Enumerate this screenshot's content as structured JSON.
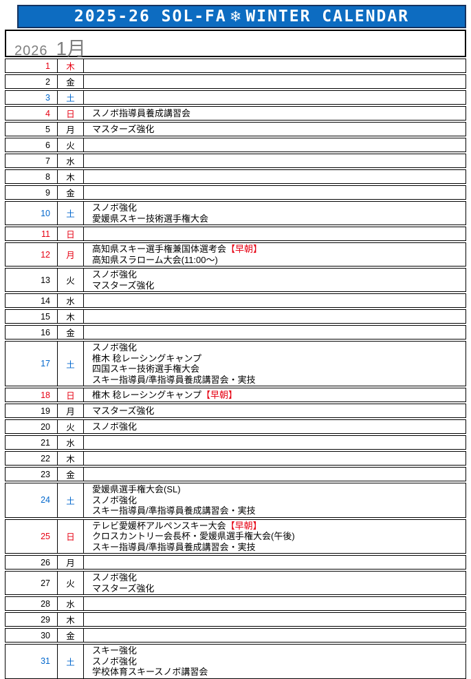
{
  "header": {
    "title_left": "2025-26 SOL-FA",
    "snowflake": "❄",
    "title_right": "WINTER CALENDAR"
  },
  "month": {
    "year": "2026",
    "label": "1月"
  },
  "colors": {
    "header_bg": "#0d6cc1",
    "header_border": "#14325f",
    "red": "#e60012",
    "blue": "#0066cc",
    "gray": "#7f7f7f"
  },
  "calendar": {
    "highlight_token": "【早朝】",
    "days": [
      {
        "date": 1,
        "dow": "木",
        "color": "red",
        "events": []
      },
      {
        "date": 2,
        "dow": "金",
        "color": "black",
        "events": []
      },
      {
        "date": 3,
        "dow": "土",
        "color": "blue",
        "events": []
      },
      {
        "date": 4,
        "dow": "日",
        "color": "red",
        "events": [
          "スノボ指導員養成講習会"
        ]
      },
      {
        "date": 5,
        "dow": "月",
        "color": "black",
        "events": [
          "マスターズ強化"
        ]
      },
      {
        "date": 6,
        "dow": "火",
        "color": "black",
        "events": []
      },
      {
        "date": 7,
        "dow": "水",
        "color": "black",
        "events": []
      },
      {
        "date": 8,
        "dow": "木",
        "color": "black",
        "events": []
      },
      {
        "date": 9,
        "dow": "金",
        "color": "black",
        "events": []
      },
      {
        "date": 10,
        "dow": "土",
        "color": "blue",
        "events": [
          "スノボ強化",
          "愛媛県スキー技術選手権大会"
        ]
      },
      {
        "date": 11,
        "dow": "日",
        "color": "red",
        "events": []
      },
      {
        "date": 12,
        "dow": "月",
        "color": "red",
        "events": [
          "高知県スキー選手権兼国体選考会【早朝】",
          "高知県スラローム大会(11:00〜)"
        ]
      },
      {
        "date": 13,
        "dow": "火",
        "color": "black",
        "events": [
          "スノボ強化",
          "マスターズ強化"
        ]
      },
      {
        "date": 14,
        "dow": "水",
        "color": "black",
        "events": []
      },
      {
        "date": 15,
        "dow": "木",
        "color": "black",
        "events": []
      },
      {
        "date": 16,
        "dow": "金",
        "color": "black",
        "events": []
      },
      {
        "date": 17,
        "dow": "土",
        "color": "blue",
        "events": [
          "スノボ強化",
          "椎木 稔レーシングキャンプ",
          "四国スキー技術選手権大会",
          "スキー指導員/準指導員養成講習会・実技"
        ]
      },
      {
        "date": 18,
        "dow": "日",
        "color": "red",
        "events": [
          "椎木 稔レーシングキャンプ【早朝】"
        ]
      },
      {
        "date": 19,
        "dow": "月",
        "color": "black",
        "events": [
          "マスターズ強化"
        ]
      },
      {
        "date": 20,
        "dow": "火",
        "color": "black",
        "events": [
          "スノボ強化"
        ]
      },
      {
        "date": 21,
        "dow": "水",
        "color": "black",
        "events": []
      },
      {
        "date": 22,
        "dow": "木",
        "color": "black",
        "events": []
      },
      {
        "date": 23,
        "dow": "金",
        "color": "black",
        "events": []
      },
      {
        "date": 24,
        "dow": "土",
        "color": "blue",
        "events": [
          "愛媛県選手権大会(SL)",
          "スノボ強化",
          "スキー指導員/準指導員養成講習会・実技"
        ]
      },
      {
        "date": 25,
        "dow": "日",
        "color": "red",
        "events": [
          "テレビ愛媛杯アルペンスキー大会【早朝】",
          "クロスカントリー会長杯・愛媛県選手権大会(午後)",
          "スキー指導員/準指導員養成講習会・実技"
        ]
      },
      {
        "date": 26,
        "dow": "月",
        "color": "black",
        "events": []
      },
      {
        "date": 27,
        "dow": "火",
        "color": "black",
        "events": [
          "スノボ強化",
          "マスターズ強化"
        ]
      },
      {
        "date": 28,
        "dow": "水",
        "color": "black",
        "events": []
      },
      {
        "date": 29,
        "dow": "木",
        "color": "black",
        "events": []
      },
      {
        "date": 30,
        "dow": "金",
        "color": "black",
        "events": []
      },
      {
        "date": 31,
        "dow": "土",
        "color": "blue",
        "events": [
          "スキー強化",
          "スノボ強化",
          "学校体育スキースノボ講習会"
        ]
      }
    ]
  }
}
